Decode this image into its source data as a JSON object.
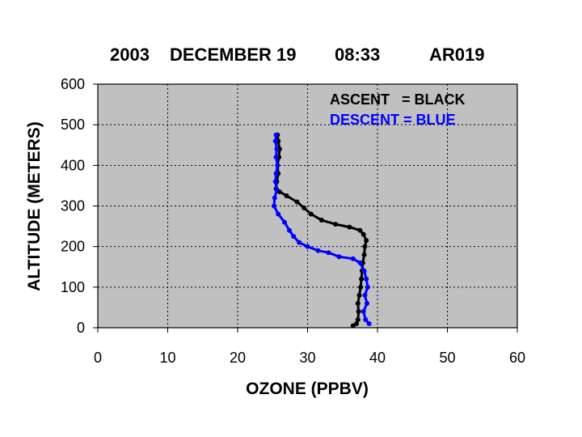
{
  "chart_data": {
    "type": "scatter",
    "title": {
      "year": "2003",
      "date": "DECEMBER 19",
      "time": "08:33",
      "id": "AR019"
    },
    "xlabel": "OZONE (PPBV)",
    "ylabel": "ALTITUDE (METERS)",
    "xlim": [
      0,
      60
    ],
    "ylim": [
      0,
      600
    ],
    "x_ticks": [
      "0",
      "10",
      "20",
      "30",
      "40",
      "50",
      "60"
    ],
    "y_ticks": [
      "0",
      "100",
      "200",
      "300",
      "400",
      "500",
      "600"
    ],
    "grid": true,
    "plot_background": "#c0c0c0",
    "legend": {
      "placement": "top-right",
      "ascent": "ASCENT   = BLACK",
      "descent": "DESCENT = BLUE"
    },
    "series": [
      {
        "color": "#000000",
        "points": [
          [
            36.5,
            5
          ],
          [
            37.0,
            10
          ],
          [
            37.2,
            20
          ],
          [
            37.3,
            40
          ],
          [
            37.2,
            60
          ],
          [
            37.4,
            80
          ],
          [
            37.6,
            100
          ],
          [
            37.7,
            120
          ],
          [
            37.8,
            140
          ],
          [
            37.9,
            160
          ],
          [
            38.1,
            180
          ],
          [
            38.2,
            200
          ],
          [
            38.4,
            215
          ],
          [
            38.0,
            230
          ],
          [
            37.5,
            240
          ],
          [
            36.0,
            248
          ],
          [
            34.0,
            255
          ],
          [
            32.0,
            265
          ],
          [
            30.5,
            280
          ],
          [
            29.5,
            295
          ],
          [
            28.5,
            310
          ],
          [
            27.0,
            325
          ],
          [
            26.0,
            335
          ],
          [
            25.5,
            342
          ],
          [
            25.6,
            360
          ],
          [
            25.8,
            380
          ],
          [
            25.7,
            400
          ],
          [
            25.9,
            420
          ],
          [
            26.0,
            440
          ],
          [
            25.8,
            460
          ],
          [
            25.7,
            475
          ]
        ]
      },
      {
        "color": "#0000ff",
        "points": [
          [
            38.8,
            10
          ],
          [
            38.3,
            20
          ],
          [
            38.0,
            40
          ],
          [
            38.5,
            60
          ],
          [
            38.2,
            80
          ],
          [
            38.6,
            100
          ],
          [
            38.4,
            120
          ],
          [
            38.1,
            140
          ],
          [
            37.5,
            160
          ],
          [
            36.5,
            170
          ],
          [
            34.5,
            175
          ],
          [
            33.0,
            185
          ],
          [
            31.5,
            190
          ],
          [
            30.0,
            200
          ],
          [
            28.8,
            210
          ],
          [
            28.0,
            225
          ],
          [
            27.4,
            240
          ],
          [
            26.7,
            260
          ],
          [
            25.8,
            280
          ],
          [
            25.2,
            300
          ],
          [
            25.3,
            320
          ],
          [
            25.6,
            340
          ],
          [
            25.4,
            360
          ],
          [
            25.5,
            380
          ],
          [
            25.7,
            400
          ],
          [
            25.5,
            420
          ],
          [
            25.6,
            440
          ],
          [
            25.4,
            460
          ],
          [
            25.5,
            475
          ]
        ]
      }
    ]
  }
}
